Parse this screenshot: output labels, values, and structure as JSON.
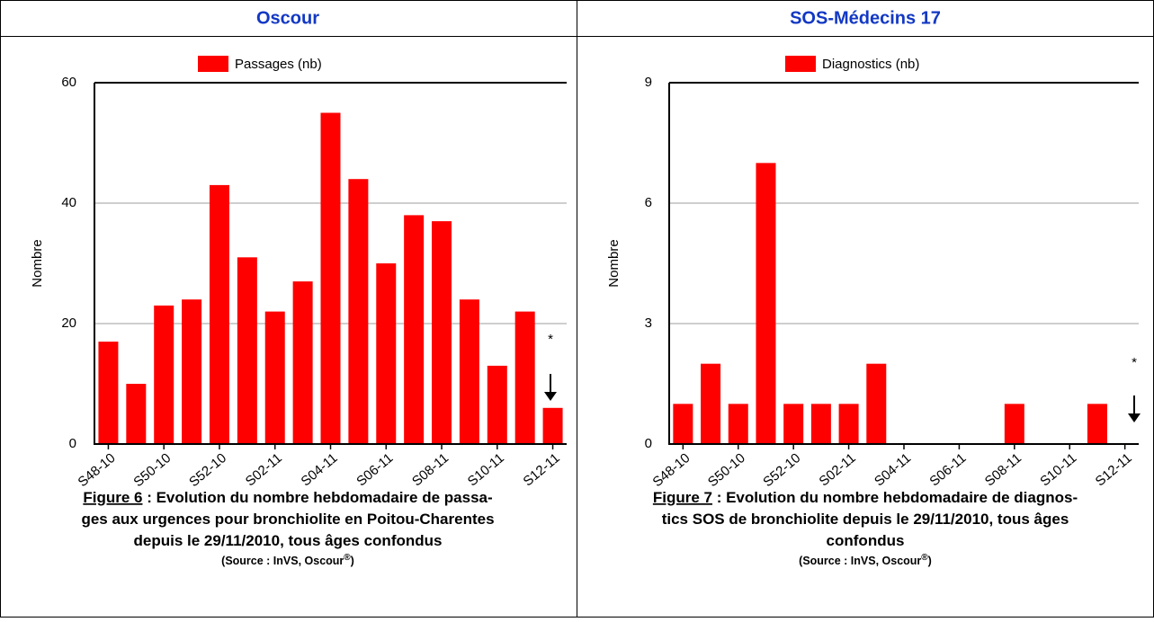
{
  "chart_data": [
    {
      "type": "bar",
      "title": "Oscour",
      "categories": [
        "S48-10",
        null,
        "S50-10",
        null,
        "S52-10",
        null,
        "S02-11",
        null,
        "S04-11",
        null,
        "S06-11",
        null,
        "S08-11",
        null,
        "S10-11",
        null,
        "S12-11"
      ],
      "series": [
        {
          "name": "Passages (nb)",
          "color": "#ff0000",
          "values": [
            17,
            10,
            23,
            24,
            43,
            31,
            22,
            27,
            55,
            44,
            30,
            38,
            37,
            24,
            13,
            22,
            6
          ]
        }
      ],
      "ylabel": "Nombre",
      "ylim": [
        0,
        60
      ],
      "yticks": [
        0,
        20,
        40,
        60
      ],
      "grid": true,
      "annotation": "*",
      "caption_label": "Figure 6",
      "caption_lines": [
        " : Evolution du nombre hebdomadaire de passa-",
        "ges aux urgences pour bronchiolite en Poitou-Charentes",
        "depuis le 29/11/2010, tous âges confondus"
      ],
      "source": "(Source : InVS, Oscour",
      "source_mark": "®",
      "source_end": ")"
    },
    {
      "type": "bar",
      "title": "SOS-Médecins 17",
      "categories": [
        "S48-10",
        null,
        "S50-10",
        null,
        "S52-10",
        null,
        "S02-11",
        null,
        "S04-11",
        null,
        "S06-11",
        null,
        "S08-11",
        null,
        "S10-11",
        null,
        "S12-11"
      ],
      "series": [
        {
          "name": "Diagnostics (nb)",
          "color": "#ff0000",
          "values": [
            1,
            2,
            1,
            7,
            1,
            1,
            1,
            2,
            0,
            0,
            0,
            0,
            1,
            0,
            0,
            1,
            0
          ]
        }
      ],
      "ylabel": "Nombre",
      "ylim": [
        0,
        9
      ],
      "yticks": [
        0,
        3,
        6,
        9
      ],
      "grid": true,
      "annotation": "*",
      "caption_label": "Figure 7",
      "caption_lines": [
        " : Evolution du nombre hebdomadaire de diagnos-",
        "tics SOS de bronchiolite depuis le 29/11/2010, tous âges",
        "confondus"
      ],
      "source": "(Source : InVS, Oscour",
      "source_mark": "®",
      "source_end": ")"
    }
  ]
}
